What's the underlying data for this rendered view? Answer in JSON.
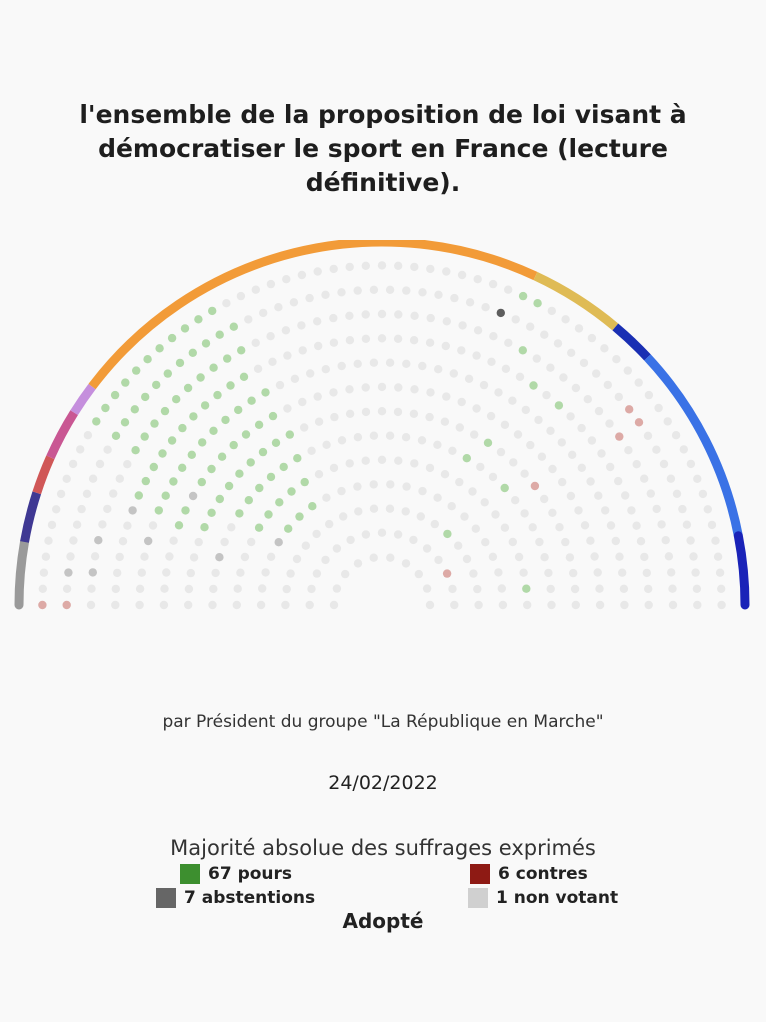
{
  "title": "l'ensemble de la proposition de loi visant à démocratiser le sport en France (lecture définitive).",
  "author": "par Président du groupe \"La République en Marche\"",
  "date": "24/02/2022",
  "majority": "Majorité absolue des suffrages exprimés",
  "legend": {
    "pour": {
      "label": "67 pours",
      "color": "#3d8f2f"
    },
    "contre": {
      "label": "6 contres",
      "color": "#8e1a14"
    },
    "abstention": {
      "label": "7 abstentions",
      "color": "#666666"
    },
    "non_votant": {
      "label": "1 non votant",
      "color": "#d0d0d0"
    }
  },
  "result": "Adopté",
  "chart_data": {
    "type": "hemicycle",
    "votes": {
      "pour": 67,
      "contre": 6,
      "abstention": 7,
      "non_votant": 1
    },
    "group_arc_colors": [
      "#9a9a9a",
      "#3f3893",
      "#d05757",
      "#c95793",
      "#c58fdd",
      "#f29b38",
      "#dfbb55",
      "#1a2fb3",
      "#3a72e6",
      "#1a23b8"
    ],
    "dot_colors": {
      "empty": "#e8e8e8",
      "pour": "#b1d9a8",
      "contre": "#ddaaa6",
      "abstention": "#5e5e5e",
      "abstention_light": "#c4c4c4"
    }
  }
}
